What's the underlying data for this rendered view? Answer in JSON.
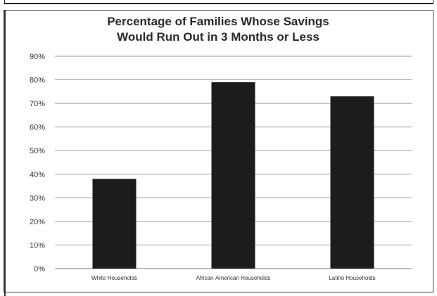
{
  "chart_data": {
    "type": "bar",
    "title_lines": [
      "Percentage of Families Whose Savings",
      "Would Run Out in 3 Months or Less"
    ],
    "categories": [
      "White Households",
      "African-American Households",
      "Latino Households"
    ],
    "values": [
      38,
      79,
      73
    ],
    "y_ticks": [
      "0%",
      "10%",
      "20%",
      "30%",
      "40%",
      "50%",
      "60%",
      "70%",
      "80%",
      "90%"
    ],
    "ylim": [
      0,
      90
    ],
    "grid": true,
    "legend": "none",
    "bar_color": "#1c1c1c"
  }
}
